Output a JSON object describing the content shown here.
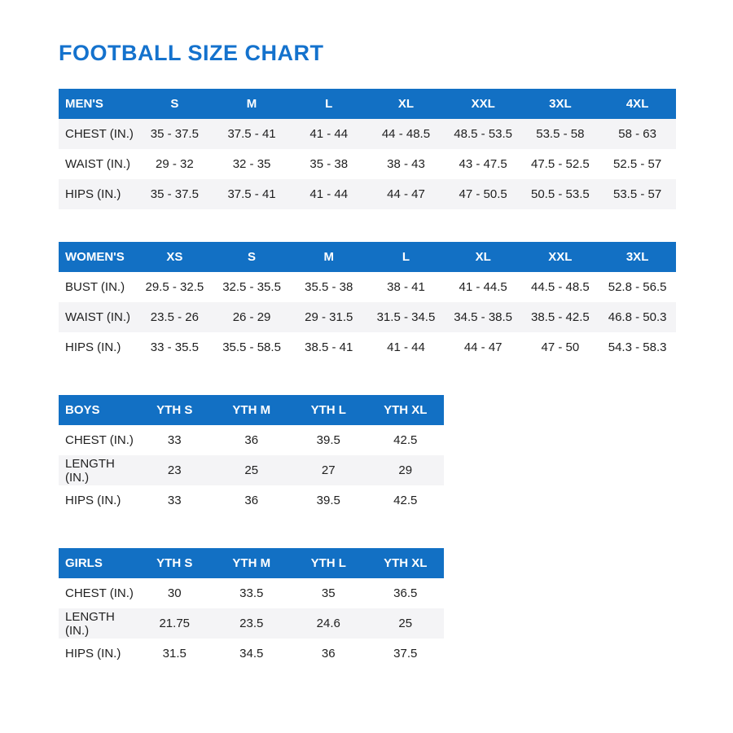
{
  "page": {
    "title": "FOOTBALL SIZE CHART"
  },
  "colors": {
    "accent_blue": "#1270c4",
    "title_blue": "#1472cd",
    "stripe_gray": "#f4f4f6",
    "text": "#212121"
  },
  "tables": [
    {
      "id": "mens",
      "header": [
        "MEN'S",
        "S",
        "M",
        "L",
        "XL",
        "XXL",
        "3XL",
        "4XL"
      ],
      "striped_rows": [
        0,
        2
      ],
      "rows": [
        {
          "label": "CHEST (IN.)",
          "values": [
            "35 - 37.5",
            "37.5 - 41",
            "41 - 44",
            "44 - 48.5",
            "48.5 - 53.5",
            "53.5 - 58",
            "58 - 63"
          ]
        },
        {
          "label": "WAIST (IN.)",
          "values": [
            "29 - 32",
            "32 - 35",
            "35 - 38",
            "38 - 43",
            "43 - 47.5",
            "47.5 - 52.5",
            "52.5 - 57"
          ]
        },
        {
          "label": "HIPS (IN.)",
          "values": [
            "35 - 37.5",
            "37.5 - 41",
            "41 - 44",
            "44 - 47",
            "47 - 50.5",
            "50.5 - 53.5",
            "53.5 - 57"
          ]
        }
      ]
    },
    {
      "id": "womens",
      "header": [
        "WOMEN'S",
        "XS",
        "S",
        "M",
        "L",
        "XL",
        "XXL",
        "3XL"
      ],
      "striped_rows": [
        1
      ],
      "rows": [
        {
          "label": "BUST (IN.)",
          "values": [
            "29.5 - 32.5",
            "32.5 - 35.5",
            "35.5 - 38",
            "38 - 41",
            "41 - 44.5",
            "44.5 - 48.5",
            "52.8 - 56.5"
          ]
        },
        {
          "label": "WAIST (IN.)",
          "values": [
            "23.5 - 26",
            "26 - 29",
            "29 - 31.5",
            "31.5 - 34.5",
            "34.5 - 38.5",
            "38.5 - 42.5",
            "46.8 - 50.3"
          ]
        },
        {
          "label": "HIPS (IN.)",
          "values": [
            "33 - 35.5",
            "35.5 - 58.5",
            "38.5 - 41",
            "41 - 44",
            "44 - 47",
            "47 - 50",
            "54.3 - 58.3"
          ]
        }
      ]
    },
    {
      "id": "boys",
      "header": [
        "BOYS",
        "YTH S",
        "YTH M",
        "YTH L",
        "YTH XL"
      ],
      "striped_rows": [
        1
      ],
      "rows": [
        {
          "label": "CHEST (IN.)",
          "values": [
            "33",
            "36",
            "39.5",
            "42.5"
          ]
        },
        {
          "label": "LENGTH (IN.)",
          "values": [
            "23",
            "25",
            "27",
            "29"
          ]
        },
        {
          "label": "HIPS (IN.)",
          "values": [
            "33",
            "36",
            "39.5",
            "42.5"
          ]
        }
      ]
    },
    {
      "id": "girls",
      "header": [
        "GIRLS",
        "YTH S",
        "YTH M",
        "YTH L",
        "YTH XL"
      ],
      "striped_rows": [
        1
      ],
      "rows": [
        {
          "label": "CHEST (IN.)",
          "values": [
            "30",
            "33.5",
            "35",
            "36.5"
          ]
        },
        {
          "label": "LENGTH (IN.)",
          "values": [
            "21.75",
            "23.5",
            "24.6",
            "25"
          ]
        },
        {
          "label": "HIPS (IN.)",
          "values": [
            "31.5",
            "34.5",
            "36",
            "37.5"
          ]
        }
      ]
    }
  ]
}
